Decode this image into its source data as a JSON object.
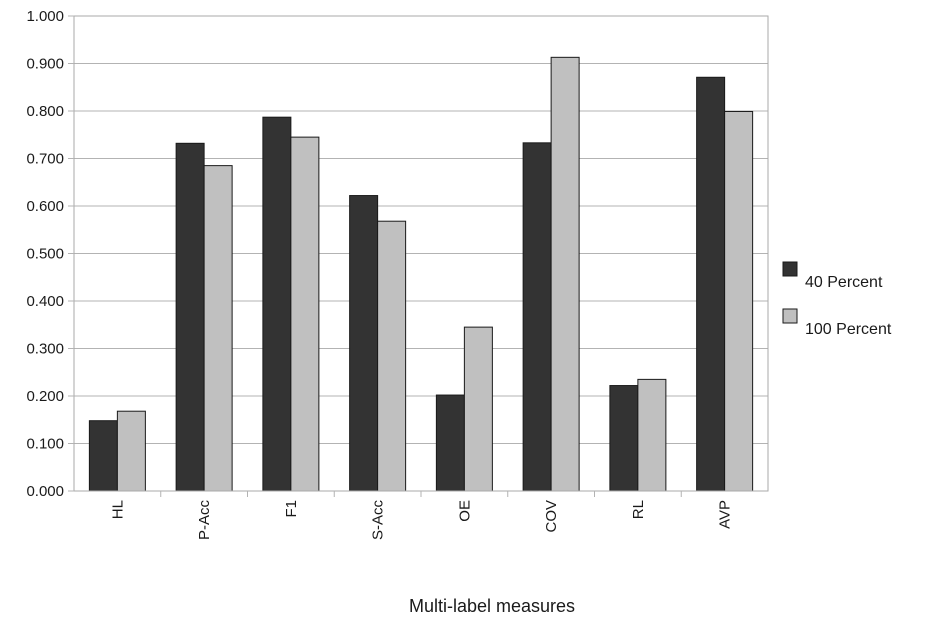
{
  "chart_data": {
    "type": "bar",
    "title": "",
    "xlabel": "Multi-label measures",
    "ylabel": "",
    "categories": [
      "HL",
      "P-Acc",
      "F1",
      "S-Acc",
      "OE",
      "COV",
      "RL",
      "AVP"
    ],
    "series": [
      {
        "name": "40 Percent",
        "color": "#333333",
        "values": [
          0.148,
          0.732,
          0.787,
          0.622,
          0.202,
          0.733,
          0.222,
          0.871
        ]
      },
      {
        "name": "100 Percent",
        "color": "#c0c0c0",
        "values": [
          0.168,
          0.685,
          0.745,
          0.568,
          0.345,
          0.913,
          0.235,
          0.799
        ]
      }
    ],
    "ylim": [
      0,
      1
    ],
    "yticks": [
      "0.000",
      "0.100",
      "0.200",
      "0.300",
      "0.400",
      "0.500",
      "0.600",
      "0.700",
      "0.800",
      "0.900",
      "1.000"
    ],
    "grid": true,
    "legend_position": "right"
  }
}
